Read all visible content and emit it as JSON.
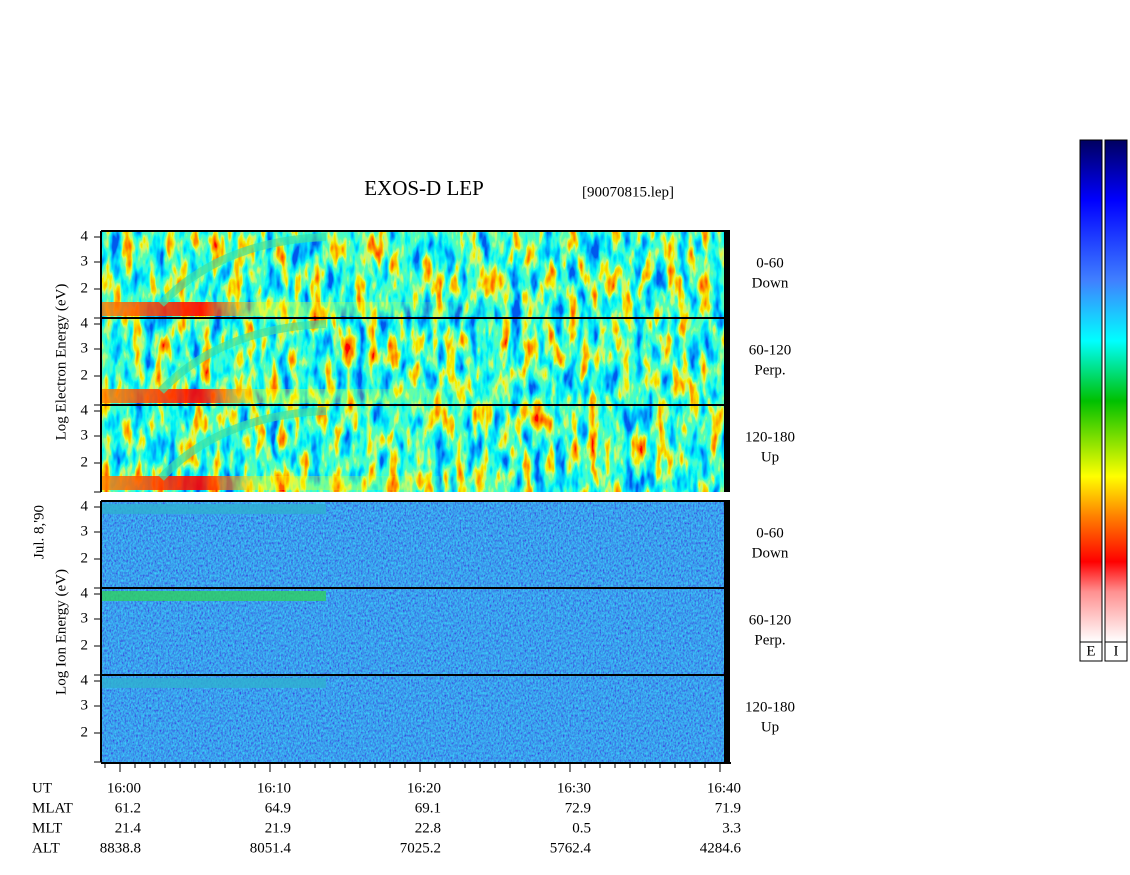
{
  "header": {
    "title": "EXOS-D LEP",
    "file": "[90070815.lep]"
  },
  "side_labels": {
    "date": "Jul. 8,'90",
    "electron": "Log  Electron  Energy (eV)",
    "ion": "Log  Ion  Energy (eV)"
  },
  "energy_ticks": [
    "4",
    "3",
    "2"
  ],
  "panels": [
    {
      "angle": "0-60",
      "direction": "Down"
    },
    {
      "angle": "60-120",
      "direction": "Perp."
    },
    {
      "angle": "120-180",
      "direction": "Up"
    },
    {
      "angle": "0-60",
      "direction": "Down"
    },
    {
      "angle": "60-120",
      "direction": "Perp."
    },
    {
      "angle": "120-180",
      "direction": "Up"
    }
  ],
  "orbit_table": {
    "row_labels": [
      "UT",
      "MLAT",
      "MLT",
      "ALT"
    ],
    "columns": [
      [
        "16:00",
        "61.2",
        "21.4",
        "8838.8"
      ],
      [
        "16:10",
        "64.9",
        "21.9",
        "8051.4"
      ],
      [
        "16:20",
        "69.1",
        "22.8",
        "7025.2"
      ],
      [
        "16:30",
        "72.9",
        "0.5",
        "5762.4"
      ],
      [
        "16:40",
        "71.9",
        "3.3",
        "4284.6"
      ]
    ]
  },
  "colorbar_labels": [
    "E",
    "I"
  ]
}
